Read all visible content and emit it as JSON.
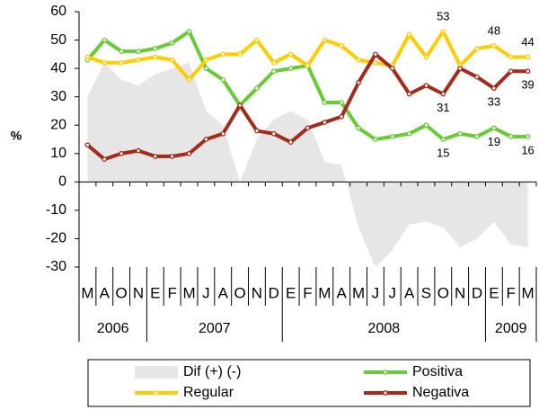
{
  "chart_data": {
    "type": "line",
    "y_label": "%",
    "categories": [
      "M",
      "A",
      "O",
      "N",
      "E",
      "F",
      "M",
      "J",
      "A",
      "O",
      "N",
      "D",
      "E",
      "F",
      "M",
      "A",
      "M",
      "J",
      "J",
      "A",
      "S",
      "O",
      "N",
      "D",
      "E",
      "F",
      "M"
    ],
    "years": [
      "2006",
      "2006",
      "2006",
      "2006",
      "2007",
      "2007",
      "2007",
      "2007",
      "2007",
      "2007",
      "2007",
      "2007",
      "2008",
      "2008",
      "2008",
      "2008",
      "2008",
      "2008",
      "2008",
      "2008",
      "2008",
      "2008",
      "2008",
      "2008",
      "2009",
      "2009",
      "2009"
    ],
    "ylim": [
      -30,
      60
    ],
    "yticks": [
      60,
      50,
      40,
      30,
      20,
      10,
      0,
      -10,
      -20,
      -30
    ],
    "series": [
      {
        "name": "Dif (+) (-)",
        "type": "area",
        "color": "#e6e6e6",
        "values": [
          30,
          42,
          36,
          34,
          38,
          40,
          42,
          25,
          20,
          0,
          15,
          22,
          25,
          22,
          7,
          6,
          -16,
          -30,
          -24,
          -15,
          -14,
          -16,
          -23,
          -20,
          -14,
          -22,
          -23
        ]
      },
      {
        "name": "Positiva",
        "type": "line",
        "color": "#66cc33",
        "values": [
          43,
          50,
          46,
          46,
          47,
          49,
          53,
          40,
          36,
          27,
          33,
          39,
          40,
          41,
          28,
          28,
          19,
          15,
          16,
          17,
          20,
          15,
          17,
          16,
          19,
          16,
          16
        ],
        "value_labels": [
          null,
          null,
          null,
          null,
          null,
          null,
          null,
          null,
          null,
          null,
          null,
          null,
          null,
          null,
          null,
          null,
          null,
          null,
          null,
          null,
          null,
          "15",
          null,
          null,
          "19",
          null,
          "16"
        ]
      },
      {
        "name": "Regular",
        "type": "line",
        "color": "#ffcc00",
        "values": [
          44,
          42,
          42,
          43,
          44,
          43,
          36,
          43,
          45,
          45,
          50,
          42,
          45,
          41,
          50,
          48,
          43,
          42,
          41,
          52,
          44,
          53,
          41,
          47,
          48,
          44,
          44
        ],
        "value_labels": [
          null,
          null,
          null,
          null,
          null,
          null,
          null,
          null,
          null,
          null,
          null,
          null,
          null,
          null,
          null,
          null,
          null,
          null,
          null,
          null,
          null,
          "53",
          null,
          null,
          "48",
          null,
          "44"
        ]
      },
      {
        "name": "Negativa",
        "type": "line",
        "color": "#a52a1a",
        "values": [
          13,
          8,
          10,
          11,
          9,
          9,
          10,
          15,
          17,
          27,
          18,
          17,
          14,
          19,
          21,
          23,
          35,
          45,
          40,
          31,
          34,
          31,
          40,
          37,
          33,
          39,
          39
        ],
        "value_labels": [
          null,
          null,
          null,
          null,
          null,
          null,
          null,
          null,
          null,
          null,
          null,
          null,
          null,
          null,
          null,
          null,
          null,
          null,
          null,
          null,
          null,
          "31",
          null,
          null,
          "33",
          null,
          "39"
        ]
      }
    ]
  }
}
